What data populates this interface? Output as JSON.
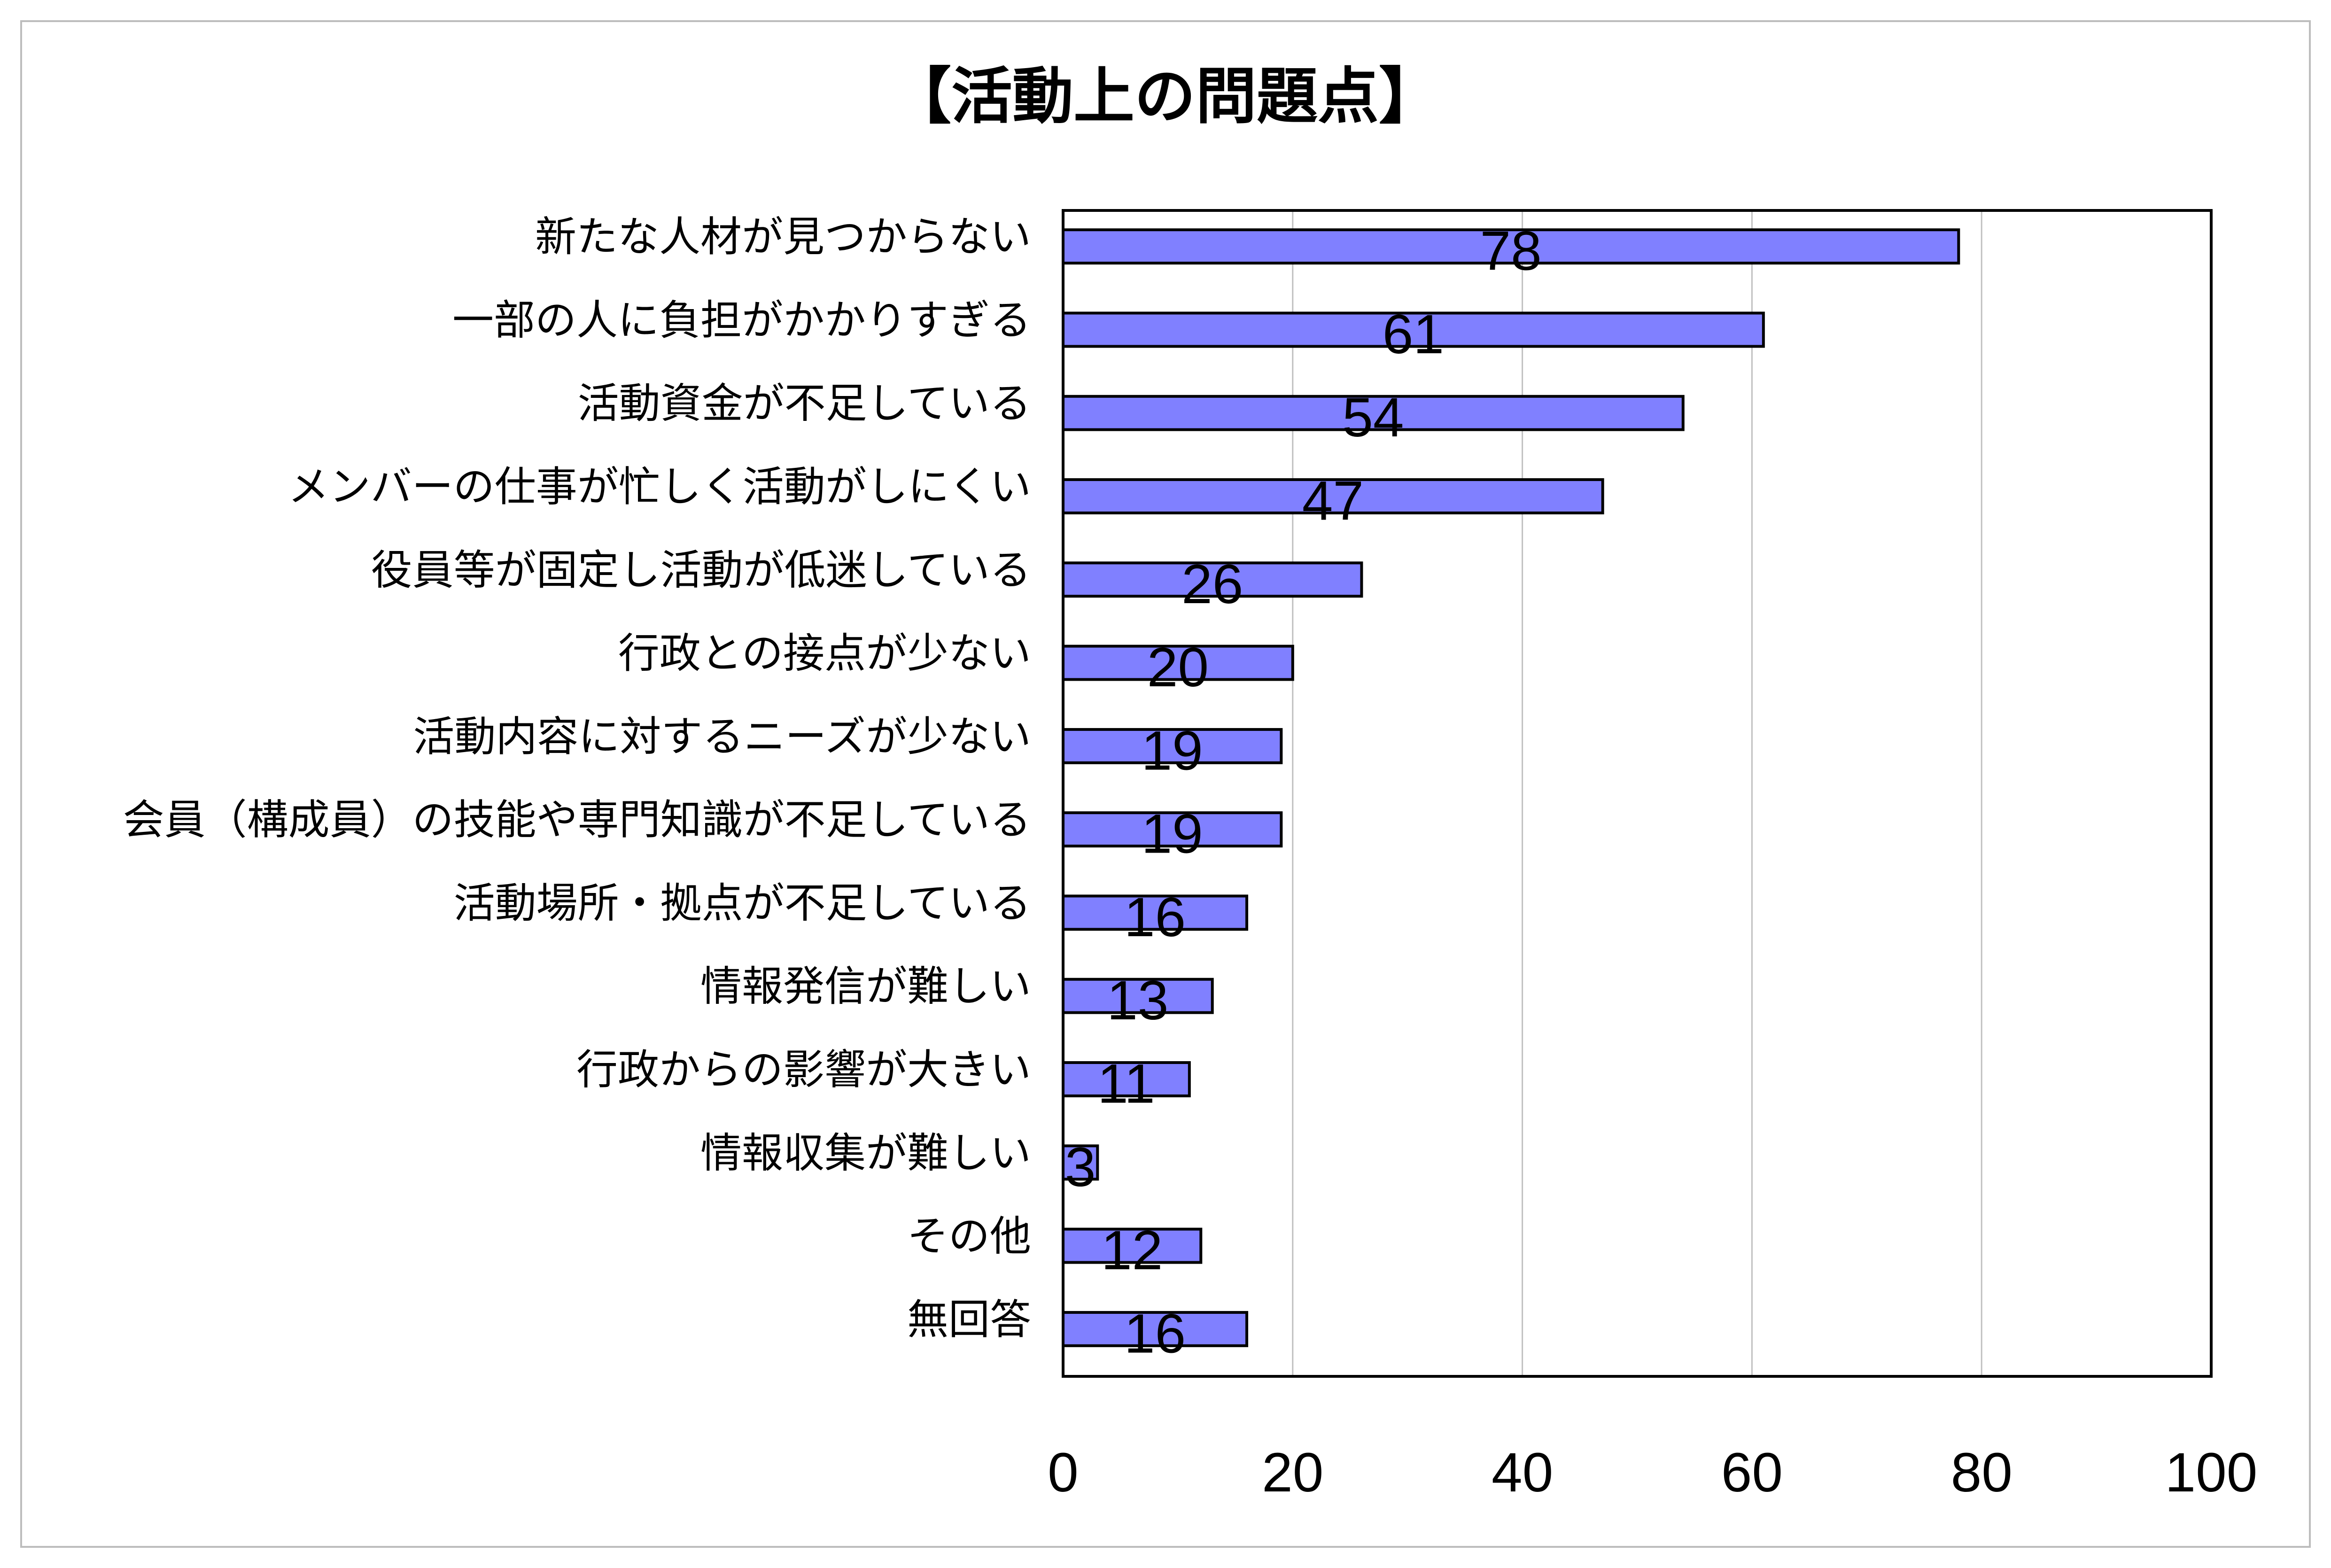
{
  "chart_data": {
    "type": "bar",
    "orientation": "horizontal",
    "title": "【活動上の問題点】",
    "categories": [
      "新たな人材が見つからない",
      "一部の人に負担がかかりすぎる",
      "活動資金が不足している",
      "メンバーの仕事が忙しく活動がしにくい",
      "役員等が固定し活動が低迷している",
      "行政との接点が少ない",
      "活動内容に対するニーズが少ない",
      "会員（構成員）の技能や専門知識が不足している",
      "活動場所・拠点が不足している",
      "情報発信が難しい",
      "行政からの影響が大きい",
      "情報収集が難しい",
      "その他",
      "無回答"
    ],
    "values": [
      78,
      61,
      54,
      47,
      26,
      20,
      19,
      19,
      16,
      13,
      11,
      3,
      12,
      16
    ],
    "xlim": [
      0,
      100
    ],
    "ticks": [
      "0",
      "20",
      "40",
      "60",
      "80",
      "100"
    ],
    "grid": true,
    "legend": "none",
    "colors": {
      "bar": "#8080ff",
      "bar_stroke": "#000000",
      "grid": "#c0c0c0"
    }
  }
}
